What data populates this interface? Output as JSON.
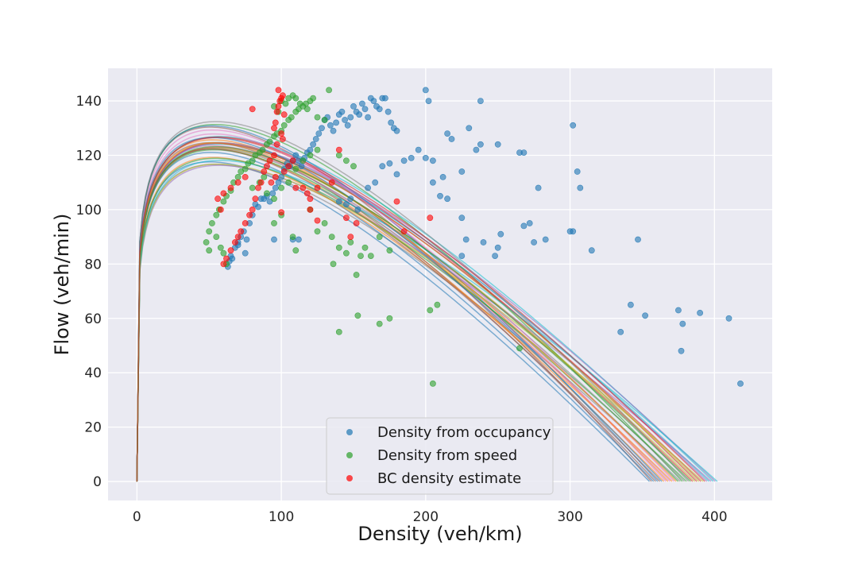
{
  "chart_data": {
    "type": "scatter",
    "title": "",
    "xlabel": "Density (veh/km)",
    "ylabel": "Flow (veh/min)",
    "xlim": [
      -20,
      440
    ],
    "ylim": [
      -7,
      152
    ],
    "xticks": [
      0,
      100,
      200,
      300,
      400
    ],
    "yticks": [
      0,
      20,
      40,
      60,
      80,
      100,
      120,
      140
    ],
    "grid": true,
    "background": "#eaeaf2",
    "legend": {
      "placement": "bottom-center",
      "entries": [
        {
          "label": "Density from occupancy",
          "color": "#1f77b4"
        },
        {
          "label": "Density from speed",
          "color": "#2ca02c"
        },
        {
          "label": "BC density estimate",
          "color": "#ff0000"
        }
      ]
    },
    "series": [
      {
        "name": "Density from occupancy",
        "color": "#1f77b4",
        "points": [
          [
            63,
            79
          ],
          [
            64,
            81
          ],
          [
            66,
            82
          ],
          [
            68,
            86
          ],
          [
            70,
            88
          ],
          [
            72,
            90
          ],
          [
            74,
            92
          ],
          [
            76,
            89
          ],
          [
            78,
            95
          ],
          [
            80,
            98
          ],
          [
            82,
            102
          ],
          [
            84,
            101
          ],
          [
            86,
            104
          ],
          [
            88,
            104
          ],
          [
            90,
            105
          ],
          [
            92,
            103
          ],
          [
            94,
            106
          ],
          [
            96,
            108
          ],
          [
            98,
            110
          ],
          [
            100,
            112
          ],
          [
            102,
            115
          ],
          [
            104,
            117
          ],
          [
            106,
            116
          ],
          [
            108,
            118
          ],
          [
            110,
            120
          ],
          [
            112,
            118
          ],
          [
            114,
            116
          ],
          [
            116,
            119
          ],
          [
            118,
            121
          ],
          [
            120,
            122
          ],
          [
            122,
            124
          ],
          [
            124,
            126
          ],
          [
            126,
            128
          ],
          [
            128,
            130
          ],
          [
            130,
            133
          ],
          [
            132,
            134
          ],
          [
            134,
            131
          ],
          [
            136,
            129
          ],
          [
            138,
            132
          ],
          [
            140,
            135
          ],
          [
            142,
            136
          ],
          [
            144,
            133
          ],
          [
            146,
            131
          ],
          [
            148,
            134
          ],
          [
            150,
            138
          ],
          [
            152,
            136
          ],
          [
            154,
            135
          ],
          [
            156,
            139
          ],
          [
            158,
            137
          ],
          [
            160,
            134
          ],
          [
            162,
            141
          ],
          [
            164,
            140
          ],
          [
            166,
            138
          ],
          [
            168,
            137
          ],
          [
            170,
            141
          ],
          [
            172,
            141
          ],
          [
            174,
            136
          ],
          [
            176,
            132
          ],
          [
            178,
            130
          ],
          [
            180,
            129
          ],
          [
            95,
            89
          ],
          [
            108,
            89
          ],
          [
            112,
            89
          ],
          [
            140,
            103
          ],
          [
            145,
            102
          ],
          [
            148,
            104
          ],
          [
            153,
            100
          ],
          [
            160,
            108
          ],
          [
            165,
            110
          ],
          [
            170,
            116
          ],
          [
            175,
            117
          ],
          [
            180,
            113
          ],
          [
            185,
            118
          ],
          [
            190,
            119
          ],
          [
            195,
            122
          ],
          [
            200,
            119
          ],
          [
            205,
            118
          ],
          [
            210,
            105
          ],
          [
            215,
            128
          ],
          [
            218,
            126
          ],
          [
            225,
            114
          ],
          [
            230,
            130
          ],
          [
            235,
            122
          ],
          [
            238,
            124
          ],
          [
            250,
            124
          ],
          [
            265,
            121
          ],
          [
            268,
            121
          ],
          [
            238,
            140
          ],
          [
            302,
            131
          ],
          [
            305,
            114
          ],
          [
            307,
            108
          ],
          [
            278,
            108
          ],
          [
            272,
            95
          ],
          [
            268,
            94
          ],
          [
            283,
            89
          ],
          [
            275,
            88
          ],
          [
            248,
            83
          ],
          [
            250,
            86
          ],
          [
            228,
            89
          ],
          [
            225,
            97
          ],
          [
            215,
            104
          ],
          [
            205,
            110
          ],
          [
            200,
            144
          ],
          [
            202,
            140
          ],
          [
            212,
            112
          ],
          [
            225,
            83
          ],
          [
            315,
            85
          ],
          [
            335,
            55
          ],
          [
            342,
            65
          ],
          [
            347,
            89
          ],
          [
            352,
            61
          ],
          [
            375,
            63
          ],
          [
            378,
            58
          ],
          [
            377,
            48
          ],
          [
            390,
            62
          ],
          [
            410,
            60
          ],
          [
            418,
            36
          ],
          [
            300,
            92
          ],
          [
            302,
            92
          ],
          [
            252,
            91
          ],
          [
            240,
            88
          ],
          [
            75,
            84
          ],
          [
            70,
            87
          ],
          [
            65,
            83
          ]
        ]
      },
      {
        "name": "Density from speed",
        "color": "#2ca02c",
        "points": [
          [
            48,
            88
          ],
          [
            50,
            92
          ],
          [
            52,
            95
          ],
          [
            55,
            98
          ],
          [
            57,
            100
          ],
          [
            60,
            103
          ],
          [
            62,
            105
          ],
          [
            65,
            107
          ],
          [
            67,
            110
          ],
          [
            70,
            112
          ],
          [
            72,
            114
          ],
          [
            75,
            115
          ],
          [
            77,
            117
          ],
          [
            80,
            118
          ],
          [
            82,
            120
          ],
          [
            85,
            121
          ],
          [
            87,
            122
          ],
          [
            90,
            124
          ],
          [
            92,
            125
          ],
          [
            95,
            127
          ],
          [
            97,
            128
          ],
          [
            100,
            129
          ],
          [
            102,
            131
          ],
          [
            105,
            133
          ],
          [
            107,
            134
          ],
          [
            110,
            136
          ],
          [
            112,
            137
          ],
          [
            115,
            138
          ],
          [
            117,
            139
          ],
          [
            120,
            140
          ],
          [
            122,
            141
          ],
          [
            95,
            138
          ],
          [
            98,
            136
          ],
          [
            100,
            140
          ],
          [
            103,
            139
          ],
          [
            105,
            141
          ],
          [
            108,
            142
          ],
          [
            110,
            141
          ],
          [
            113,
            139
          ],
          [
            118,
            137
          ],
          [
            125,
            134
          ],
          [
            130,
            133
          ],
          [
            133,
            144
          ],
          [
            80,
            108
          ],
          [
            85,
            110
          ],
          [
            88,
            112
          ],
          [
            90,
            106
          ],
          [
            95,
            104
          ],
          [
            100,
            108
          ],
          [
            105,
            110
          ],
          [
            110,
            115
          ],
          [
            115,
            118
          ],
          [
            120,
            120
          ],
          [
            125,
            122
          ],
          [
            55,
            90
          ],
          [
            58,
            86
          ],
          [
            60,
            84
          ],
          [
            62,
            80
          ],
          [
            50,
            85
          ],
          [
            95,
            95
          ],
          [
            100,
            98
          ],
          [
            108,
            90
          ],
          [
            110,
            85
          ],
          [
            120,
            100
          ],
          [
            125,
            92
          ],
          [
            130,
            95
          ],
          [
            135,
            90
          ],
          [
            136,
            80
          ],
          [
            140,
            86
          ],
          [
            145,
            84
          ],
          [
            148,
            88
          ],
          [
            152,
            76
          ],
          [
            155,
            83
          ],
          [
            158,
            86
          ],
          [
            162,
            83
          ],
          [
            168,
            90
          ],
          [
            175,
            85
          ],
          [
            140,
            55
          ],
          [
            153,
            61
          ],
          [
            168,
            58
          ],
          [
            175,
            60
          ],
          [
            203,
            63
          ],
          [
            208,
            65
          ],
          [
            205,
            36
          ],
          [
            265,
            49
          ],
          [
            140,
            120
          ],
          [
            145,
            118
          ],
          [
            150,
            116
          ]
        ]
      },
      {
        "name": "BC density estimate",
        "color": "#ff0000",
        "points": [
          [
            80,
            137
          ],
          [
            95,
            130
          ],
          [
            96,
            132
          ],
          [
            97,
            136
          ],
          [
            98,
            138
          ],
          [
            99,
            140
          ],
          [
            100,
            141
          ],
          [
            101,
            142
          ],
          [
            102,
            135
          ],
          [
            98,
            144
          ],
          [
            100,
            128
          ],
          [
            101,
            126
          ],
          [
            97,
            124
          ],
          [
            95,
            120
          ],
          [
            92,
            118
          ],
          [
            90,
            116
          ],
          [
            88,
            114
          ],
          [
            86,
            110
          ],
          [
            84,
            108
          ],
          [
            82,
            104
          ],
          [
            80,
            100
          ],
          [
            78,
            98
          ],
          [
            75,
            95
          ],
          [
            72,
            92
          ],
          [
            70,
            90
          ],
          [
            68,
            88
          ],
          [
            65,
            85
          ],
          [
            62,
            82
          ],
          [
            60,
            80
          ],
          [
            58,
            100
          ],
          [
            56,
            104
          ],
          [
            60,
            106
          ],
          [
            65,
            108
          ],
          [
            70,
            110
          ],
          [
            75,
            112
          ],
          [
            100,
            99
          ],
          [
            110,
            108
          ],
          [
            115,
            108
          ],
          [
            118,
            106
          ],
          [
            120,
            104
          ],
          [
            125,
            108
          ],
          [
            135,
            110
          ],
          [
            140,
            122
          ],
          [
            145,
            97
          ],
          [
            148,
            90
          ],
          [
            152,
            95
          ],
          [
            185,
            92
          ],
          [
            203,
            97
          ],
          [
            180,
            103
          ],
          [
            120,
            100
          ],
          [
            125,
            96
          ],
          [
            93,
            110
          ],
          [
            96,
            112
          ],
          [
            102,
            114
          ],
          [
            105,
            116
          ],
          [
            108,
            118
          ]
        ]
      }
    ]
  }
}
